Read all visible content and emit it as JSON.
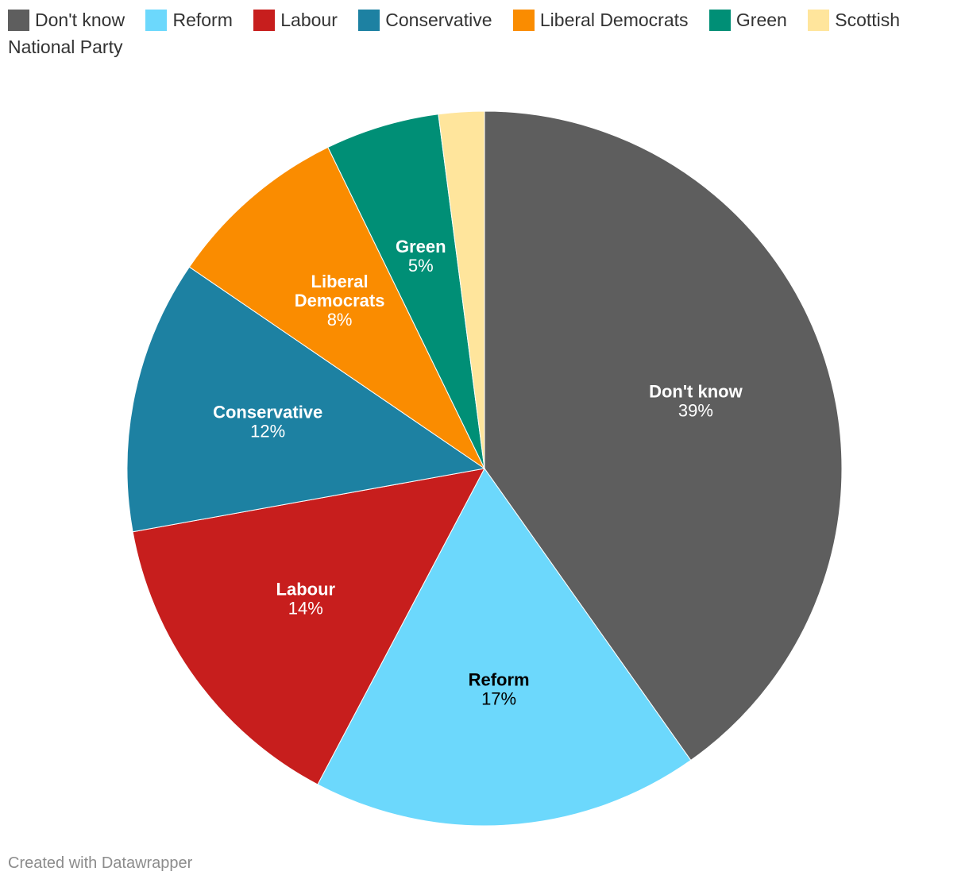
{
  "chart_data": {
    "type": "pie",
    "categories": [
      "Don't know",
      "Reform",
      "Labour",
      "Conservative",
      "Liberal Democrats",
      "Green",
      "Scottish National Party"
    ],
    "values": [
      39,
      17,
      14,
      12,
      8,
      5,
      2
    ],
    "labels": [
      "39%",
      "17%",
      "14%",
      "12%",
      "8%",
      "5%",
      ""
    ],
    "slice_labels": [
      [
        "Don't know"
      ],
      [
        "Reform"
      ],
      [
        "Labour"
      ],
      [
        "Conservative"
      ],
      [
        "Liberal",
        "Democrats"
      ],
      [
        "Green"
      ],
      []
    ],
    "colors": [
      "#5e5e5e",
      "#6cd8fc",
      "#c71e1d",
      "#1d81a2",
      "#fa8c00",
      "#008f76",
      "#ffe59c"
    ],
    "label_colors": [
      "#ffffff",
      "#000000",
      "#ffffff",
      "#ffffff",
      "#ffffff",
      "#ffffff",
      "#000000"
    ],
    "start": "top",
    "direction": "clockwise",
    "legend_position": "top"
  },
  "footer": {
    "credit": "Created with Datawrapper"
  }
}
